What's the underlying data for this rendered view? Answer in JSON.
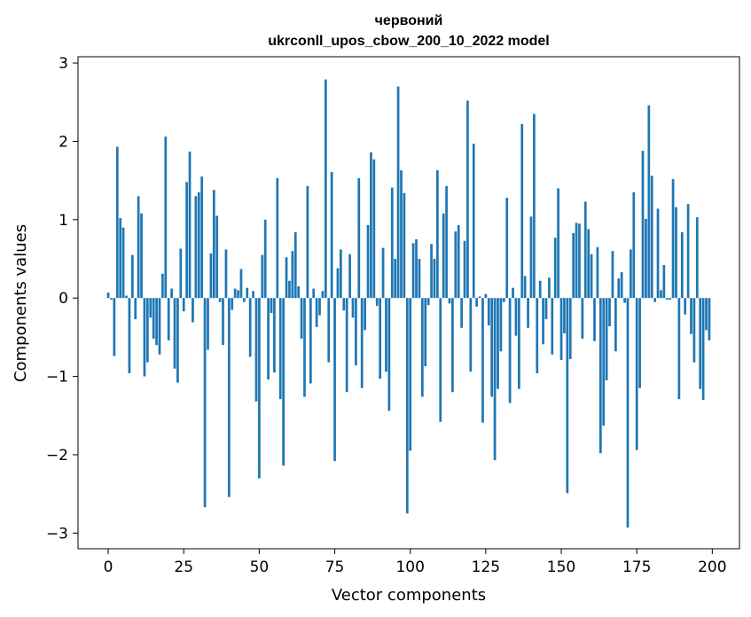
{
  "chart_data": {
    "type": "bar",
    "title": "червоний",
    "subtitle": "ukrconll_upos_cbow_200_10_2022 model",
    "xlabel": "Vector components",
    "ylabel": "Components values",
    "xlim": [
      -10,
      209
    ],
    "ylim": [
      -3.2,
      3.08
    ],
    "xticks": [
      0,
      25,
      50,
      75,
      100,
      125,
      150,
      175,
      200
    ],
    "yticks": [
      -3,
      -2,
      -1,
      0,
      1,
      2,
      3
    ],
    "xtick_labels": [
      "0",
      "25",
      "50",
      "75",
      "100",
      "125",
      "150",
      "175",
      "200"
    ],
    "ytick_labels": [
      "−3",
      "−2",
      "−1",
      "0",
      "1",
      "2",
      "3"
    ],
    "bar_color": "#1f77b4",
    "grid": false,
    "legend": "none",
    "x": [
      0,
      1,
      2,
      3,
      4,
      5,
      6,
      7,
      8,
      9,
      10,
      11,
      12,
      13,
      14,
      15,
      16,
      17,
      18,
      19,
      20,
      21,
      22,
      23,
      24,
      25,
      26,
      27,
      28,
      29,
      30,
      31,
      32,
      33,
      34,
      35,
      36,
      37,
      38,
      39,
      40,
      41,
      42,
      43,
      44,
      45,
      46,
      47,
      48,
      49,
      50,
      51,
      52,
      53,
      54,
      55,
      56,
      57,
      58,
      59,
      60,
      61,
      62,
      63,
      64,
      65,
      66,
      67,
      68,
      69,
      70,
      71,
      72,
      73,
      74,
      75,
      76,
      77,
      78,
      79,
      80,
      81,
      82,
      83,
      84,
      85,
      86,
      87,
      88,
      89,
      90,
      91,
      92,
      93,
      94,
      95,
      96,
      97,
      98,
      99,
      100,
      101,
      102,
      103,
      104,
      105,
      106,
      107,
      108,
      109,
      110,
      111,
      112,
      113,
      114,
      115,
      116,
      117,
      118,
      119,
      120,
      121,
      122,
      123,
      124,
      125,
      126,
      127,
      128,
      129,
      130,
      131,
      132,
      133,
      134,
      135,
      136,
      137,
      138,
      139,
      140,
      141,
      142,
      143,
      144,
      145,
      146,
      147,
      148,
      149,
      150,
      151,
      152,
      153,
      154,
      155,
      156,
      157,
      158,
      159,
      160,
      161,
      162,
      163,
      164,
      165,
      166,
      167,
      168,
      169,
      170,
      171,
      172,
      173,
      174,
      175,
      176,
      177,
      178,
      179,
      180,
      181,
      182,
      183,
      184,
      185,
      186,
      187,
      188,
      189,
      190,
      191,
      192,
      193,
      194,
      195,
      196,
      197,
      198,
      199
    ],
    "values": [
      0.07,
      -0.02,
      -0.74,
      1.93,
      1.02,
      0.9,
      0.03,
      -0.96,
      0.55,
      -0.27,
      1.3,
      1.08,
      -1.0,
      -0.82,
      -0.25,
      -0.52,
      -0.6,
      -0.72,
      0.31,
      2.06,
      -0.54,
      0.12,
      -0.9,
      -1.08,
      0.63,
      -0.17,
      1.48,
      1.87,
      -0.31,
      1.3,
      1.35,
      1.55,
      -2.67,
      -0.66,
      0.57,
      1.38,
      1.05,
      -0.05,
      -0.6,
      0.62,
      -2.54,
      -0.15,
      0.12,
      0.1,
      0.37,
      -0.05,
      0.13,
      -0.75,
      0.09,
      -1.32,
      -2.3,
      0.55,
      1.0,
      -1.04,
      -0.19,
      -0.95,
      1.53,
      -1.29,
      -2.14,
      0.52,
      0.22,
      0.6,
      0.84,
      0.15,
      -0.52,
      -1.26,
      1.43,
      -1.09,
      0.12,
      -0.37,
      -0.22,
      0.09,
      2.79,
      -0.82,
      1.61,
      -2.08,
      0.38,
      0.62,
      -0.16,
      -1.2,
      0.56,
      -0.25,
      -0.86,
      1.53,
      -1.15,
      -0.41,
      0.93,
      1.86,
      1.77,
      -0.1,
      -1.03,
      0.64,
      -0.94,
      -1.44,
      1.41,
      0.5,
      2.7,
      1.63,
      1.34,
      -2.75,
      -1.95,
      0.7,
      0.75,
      0.5,
      -1.26,
      -0.87,
      -0.09,
      0.69,
      0.5,
      1.63,
      -1.58,
      1.08,
      1.43,
      -0.07,
      -1.2,
      0.85,
      0.93,
      -0.38,
      0.73,
      2.52,
      -0.94,
      1.97,
      -0.11,
      0.02,
      -1.59,
      0.05,
      -0.35,
      -1.26,
      -2.07,
      -1.16,
      -0.68,
      -0.05,
      1.28,
      -1.34,
      0.13,
      -0.48,
      -1.16,
      2.22,
      0.28,
      -0.38,
      1.04,
      2.35,
      -0.96,
      0.22,
      -0.59,
      -0.27,
      0.26,
      -0.72,
      0.77,
      1.4,
      -0.79,
      -0.45,
      -2.49,
      -0.78,
      0.83,
      0.96,
      0.95,
      -0.52,
      1.23,
      0.88,
      0.56,
      -0.55,
      0.65,
      -1.98,
      -1.63,
      -1.05,
      -0.36,
      0.6,
      -0.68,
      0.25,
      0.33,
      -0.06,
      -2.93,
      0.62,
      1.35,
      -1.94,
      -1.15,
      1.88,
      1.01,
      2.46,
      1.56,
      -0.05,
      1.14,
      0.1,
      0.42,
      -0.02,
      -0.02,
      1.52,
      1.16,
      -1.29,
      0.84,
      -0.21,
      1.2,
      -0.46,
      -0.82,
      1.03,
      -1.16,
      -1.3,
      -0.41,
      -0.54
    ]
  }
}
